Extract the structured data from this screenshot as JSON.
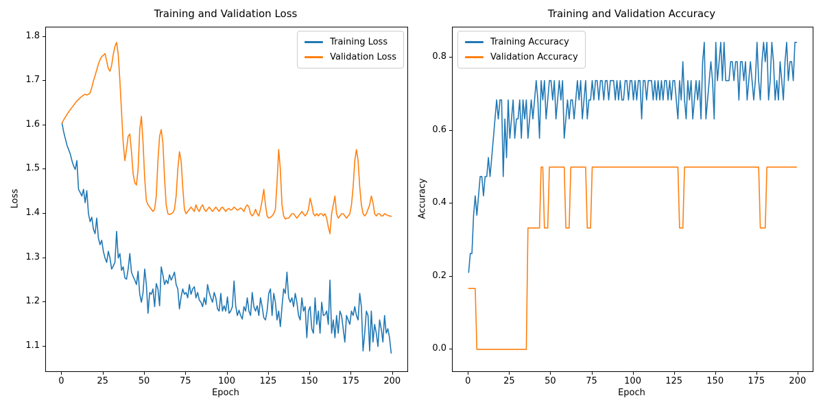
{
  "figure": {
    "background": "#ffffff",
    "text_color": "#000000",
    "spine_color": "#000000"
  },
  "chart_data": [
    {
      "type": "line",
      "title": "Training and Validation Loss",
      "xlabel": "Epoch",
      "ylabel": "Loss",
      "xlim": [
        -9.7,
        208.8
      ],
      "ylim": [
        1.044,
        1.821
      ],
      "x_start": 0,
      "x_step": 1,
      "xticks": [
        0,
        25,
        50,
        75,
        100,
        125,
        150,
        175,
        200
      ],
      "xtick_labels": [
        "0",
        "25",
        "50",
        "75",
        "100",
        "125",
        "150",
        "175",
        "200"
      ],
      "yticks": [
        1.1,
        1.2,
        1.3,
        1.4,
        1.5,
        1.6,
        1.7,
        1.8
      ],
      "ytick_labels": [
        "1.1",
        "1.2",
        "1.3",
        "1.4",
        "1.5",
        "1.6",
        "1.7",
        "1.8"
      ],
      "grid": false,
      "legend_position": "upper-right",
      "series": [
        {
          "name": "Training Loss",
          "color": "#1f77b4",
          "values": [
            1.605,
            1.585,
            1.57,
            1.555,
            1.545,
            1.535,
            1.52,
            1.508,
            1.5,
            1.52,
            1.455,
            1.448,
            1.44,
            1.455,
            1.425,
            1.452,
            1.4,
            1.382,
            1.392,
            1.365,
            1.355,
            1.39,
            1.345,
            1.33,
            1.34,
            1.315,
            1.3,
            1.29,
            1.315,
            1.3,
            1.275,
            1.282,
            1.29,
            1.36,
            1.3,
            1.31,
            1.272,
            1.28,
            1.255,
            1.252,
            1.275,
            1.31,
            1.268,
            1.258,
            1.25,
            1.24,
            1.27,
            1.218,
            1.2,
            1.222,
            1.275,
            1.24,
            1.175,
            1.222,
            1.218,
            1.23,
            1.19,
            1.242,
            1.23,
            1.192,
            1.28,
            1.262,
            1.24,
            1.25,
            1.242,
            1.262,
            1.25,
            1.258,
            1.268,
            1.24,
            1.23,
            1.185,
            1.212,
            1.23,
            1.218,
            1.222,
            1.21,
            1.24,
            1.218,
            1.23,
            1.235,
            1.21,
            1.222,
            1.205,
            1.2,
            1.19,
            1.21,
            1.195,
            1.24,
            1.222,
            1.21,
            1.2,
            1.222,
            1.21,
            1.185,
            1.18,
            1.22,
            1.18,
            1.192,
            1.18,
            1.212,
            1.175,
            1.18,
            1.19,
            1.248,
            1.192,
            1.17,
            1.182,
            1.17,
            1.162,
            1.19,
            1.18,
            1.21,
            1.18,
            1.17,
            1.222,
            1.19,
            1.18,
            1.192,
            1.17,
            1.21,
            1.19,
            1.165,
            1.16,
            1.18,
            1.22,
            1.23,
            1.17,
            1.22,
            1.2,
            1.16,
            1.18,
            1.145,
            1.19,
            1.23,
            1.22,
            1.268,
            1.21,
            1.2,
            1.21,
            1.19,
            1.22,
            1.2,
            1.17,
            1.16,
            1.21,
            1.18,
            1.19,
            1.12,
            1.18,
            1.19,
            1.14,
            1.13,
            1.21,
            1.15,
            1.18,
            1.13,
            1.2,
            1.17,
            1.172,
            1.18,
            1.15,
            1.25,
            1.13,
            1.16,
            1.12,
            1.17,
            1.13,
            1.18,
            1.17,
            1.14,
            1.11,
            1.17,
            1.16,
            1.15,
            1.18,
            1.17,
            1.19,
            1.17,
            1.16,
            1.22,
            1.19,
            1.09,
            1.13,
            1.18,
            1.17,
            1.09,
            1.18,
            1.11,
            1.15,
            1.13,
            1.1,
            1.16,
            1.14,
            1.11,
            1.17,
            1.13,
            1.14,
            1.12,
            1.085
          ]
        },
        {
          "name": "Validation Loss",
          "color": "#ff7f0e",
          "values": [
            1.605,
            1.612,
            1.618,
            1.624,
            1.63,
            1.635,
            1.64,
            1.645,
            1.65,
            1.655,
            1.658,
            1.662,
            1.665,
            1.668,
            1.67,
            1.668,
            1.67,
            1.673,
            1.685,
            1.7,
            1.712,
            1.725,
            1.738,
            1.748,
            1.755,
            1.758,
            1.762,
            1.745,
            1.728,
            1.722,
            1.735,
            1.76,
            1.778,
            1.787,
            1.76,
            1.7,
            1.63,
            1.56,
            1.52,
            1.545,
            1.575,
            1.58,
            1.54,
            1.49,
            1.47,
            1.465,
            1.5,
            1.59,
            1.62,
            1.56,
            1.48,
            1.43,
            1.42,
            1.415,
            1.41,
            1.405,
            1.41,
            1.44,
            1.52,
            1.575,
            1.59,
            1.56,
            1.48,
            1.42,
            1.4,
            1.398,
            1.4,
            1.402,
            1.41,
            1.44,
            1.5,
            1.54,
            1.52,
            1.46,
            1.41,
            1.4,
            1.405,
            1.41,
            1.415,
            1.41,
            1.405,
            1.42,
            1.41,
            1.405,
            1.415,
            1.42,
            1.41,
            1.405,
            1.41,
            1.415,
            1.41,
            1.405,
            1.41,
            1.415,
            1.41,
            1.405,
            1.412,
            1.415,
            1.41,
            1.405,
            1.41,
            1.412,
            1.408,
            1.41,
            1.415,
            1.412,
            1.408,
            1.41,
            1.413,
            1.41,
            1.405,
            1.415,
            1.42,
            1.415,
            1.4,
            1.395,
            1.4,
            1.41,
            1.4,
            1.395,
            1.41,
            1.43,
            1.455,
            1.42,
            1.395,
            1.39,
            1.392,
            1.395,
            1.4,
            1.41,
            1.47,
            1.545,
            1.5,
            1.42,
            1.395,
            1.388,
            1.39,
            1.39,
            1.395,
            1.4,
            1.4,
            1.395,
            1.39,
            1.395,
            1.4,
            1.405,
            1.4,
            1.395,
            1.4,
            1.41,
            1.435,
            1.42,
            1.4,
            1.395,
            1.4,
            1.395,
            1.4,
            1.4,
            1.395,
            1.4,
            1.39,
            1.37,
            1.355,
            1.4,
            1.42,
            1.44,
            1.4,
            1.39,
            1.395,
            1.4,
            1.4,
            1.395,
            1.39,
            1.395,
            1.4,
            1.42,
            1.46,
            1.52,
            1.545,
            1.52,
            1.46,
            1.42,
            1.4,
            1.395,
            1.4,
            1.41,
            1.42,
            1.44,
            1.425,
            1.4,
            1.395,
            1.4,
            1.4,
            1.395,
            1.395,
            1.4,
            1.398,
            1.396,
            1.395,
            1.394
          ]
        }
      ]
    },
    {
      "type": "line",
      "title": "Training and Validation Accuracy",
      "xlabel": "Epoch",
      "ylabel": "Accuracy",
      "xlim": [
        -9.7,
        208.8
      ],
      "ylim": [
        -0.06,
        0.883
      ],
      "x_start": 0,
      "x_step": 1,
      "xticks": [
        0,
        25,
        50,
        75,
        100,
        125,
        150,
        175,
        200
      ],
      "xtick_labels": [
        "0",
        "25",
        "50",
        "75",
        "100",
        "125",
        "150",
        "175",
        "200"
      ],
      "yticks": [
        0.0,
        0.2,
        0.4,
        0.6,
        0.8
      ],
      "ytick_labels": [
        "0.0",
        "0.2",
        "0.4",
        "0.6",
        "0.8"
      ],
      "grid": false,
      "legend_position": "upper-left",
      "series": [
        {
          "name": "Training Accuracy",
          "color": "#1f77b4",
          "values": [
            0.211,
            0.263,
            0.263,
            0.368,
            0.421,
            0.368,
            0.421,
            0.474,
            0.474,
            0.421,
            0.474,
            0.474,
            0.526,
            0.474,
            0.526,
            0.579,
            0.632,
            0.684,
            0.632,
            0.684,
            0.684,
            0.474,
            0.632,
            0.526,
            0.684,
            0.579,
            0.632,
            0.684,
            0.579,
            0.632,
            0.632,
            0.684,
            0.579,
            0.684,
            0.632,
            0.684,
            0.579,
            0.632,
            0.684,
            0.632,
            0.684,
            0.737,
            0.684,
            0.579,
            0.737,
            0.684,
            0.737,
            0.632,
            0.684,
            0.737,
            0.737,
            0.684,
            0.737,
            0.632,
            0.684,
            0.737,
            0.684,
            0.737,
            0.579,
            0.632,
            0.684,
            0.632,
            0.684,
            0.684,
            0.632,
            0.684,
            0.737,
            0.684,
            0.737,
            0.632,
            0.684,
            0.737,
            0.632,
            0.684,
            0.684,
            0.737,
            0.684,
            0.737,
            0.737,
            0.684,
            0.737,
            0.737,
            0.684,
            0.737,
            0.737,
            0.684,
            0.737,
            0.737,
            0.737,
            0.684,
            0.737,
            0.684,
            0.737,
            0.684,
            0.684,
            0.737,
            0.737,
            0.684,
            0.737,
            0.737,
            0.684,
            0.737,
            0.684,
            0.737,
            0.737,
            0.632,
            0.737,
            0.737,
            0.684,
            0.737,
            0.737,
            0.737,
            0.684,
            0.737,
            0.684,
            0.737,
            0.684,
            0.737,
            0.684,
            0.737,
            0.737,
            0.684,
            0.737,
            0.684,
            0.737,
            0.737,
            0.684,
            0.632,
            0.737,
            0.684,
            0.789,
            0.684,
            0.632,
            0.737,
            0.684,
            0.737,
            0.632,
            0.684,
            0.737,
            0.684,
            0.737,
            0.632,
            0.789,
            0.842,
            0.632,
            0.684,
            0.737,
            0.789,
            0.737,
            0.632,
            0.842,
            0.737,
            0.789,
            0.842,
            0.737,
            0.842,
            0.737,
            0.737,
            0.737,
            0.789,
            0.789,
            0.737,
            0.789,
            0.789,
            0.684,
            0.789,
            0.789,
            0.737,
            0.789,
            0.684,
            0.737,
            0.789,
            0.737,
            0.684,
            0.737,
            0.842,
            0.737,
            0.684,
            0.789,
            0.842,
            0.789,
            0.842,
            0.684,
            0.737,
            0.842,
            0.789,
            0.684,
            0.737,
            0.684,
            0.789,
            0.737,
            0.684,
            0.789,
            0.842,
            0.737,
            0.789,
            0.789,
            0.737,
            0.842,
            0.842
          ]
        },
        {
          "name": "Validation Accuracy",
          "color": "#ff7f0e",
          "values": [
            0.167,
            0.167,
            0.167,
            0.167,
            0.167,
            0.0,
            0.0,
            0.0,
            0.0,
            0.0,
            0.0,
            0.0,
            0.0,
            0.0,
            0.0,
            0.0,
            0.0,
            0.0,
            0.0,
            0.0,
            0.0,
            0.0,
            0.0,
            0.0,
            0.0,
            0.0,
            0.0,
            0.0,
            0.0,
            0.0,
            0.0,
            0.0,
            0.0,
            0.0,
            0.0,
            0.0,
            0.333,
            0.333,
            0.333,
            0.333,
            0.333,
            0.333,
            0.333,
            0.333,
            0.5,
            0.5,
            0.333,
            0.333,
            0.333,
            0.5,
            0.5,
            0.5,
            0.5,
            0.5,
            0.5,
            0.5,
            0.5,
            0.5,
            0.5,
            0.333,
            0.333,
            0.333,
            0.5,
            0.5,
            0.5,
            0.5,
            0.5,
            0.5,
            0.5,
            0.5,
            0.5,
            0.5,
            0.333,
            0.333,
            0.333,
            0.5,
            0.5,
            0.5,
            0.5,
            0.5,
            0.5,
            0.5,
            0.5,
            0.5,
            0.5,
            0.5,
            0.5,
            0.5,
            0.5,
            0.5,
            0.5,
            0.5,
            0.5,
            0.5,
            0.5,
            0.5,
            0.5,
            0.5,
            0.5,
            0.5,
            0.5,
            0.5,
            0.5,
            0.5,
            0.5,
            0.5,
            0.5,
            0.5,
            0.5,
            0.5,
            0.5,
            0.5,
            0.5,
            0.5,
            0.5,
            0.5,
            0.5,
            0.5,
            0.5,
            0.5,
            0.5,
            0.5,
            0.5,
            0.5,
            0.5,
            0.5,
            0.5,
            0.5,
            0.333,
            0.333,
            0.333,
            0.5,
            0.5,
            0.5,
            0.5,
            0.5,
            0.5,
            0.5,
            0.5,
            0.5,
            0.5,
            0.5,
            0.5,
            0.5,
            0.5,
            0.5,
            0.5,
            0.5,
            0.5,
            0.5,
            0.5,
            0.5,
            0.5,
            0.5,
            0.5,
            0.5,
            0.5,
            0.5,
            0.5,
            0.5,
            0.5,
            0.5,
            0.5,
            0.5,
            0.5,
            0.5,
            0.5,
            0.5,
            0.5,
            0.5,
            0.5,
            0.5,
            0.5,
            0.5,
            0.5,
            0.5,
            0.5,
            0.333,
            0.333,
            0.333,
            0.333,
            0.5,
            0.5,
            0.5,
            0.5,
            0.5,
            0.5,
            0.5,
            0.5,
            0.5,
            0.5,
            0.5,
            0.5,
            0.5,
            0.5,
            0.5,
            0.5,
            0.5,
            0.5,
            0.5
          ]
        }
      ]
    }
  ]
}
